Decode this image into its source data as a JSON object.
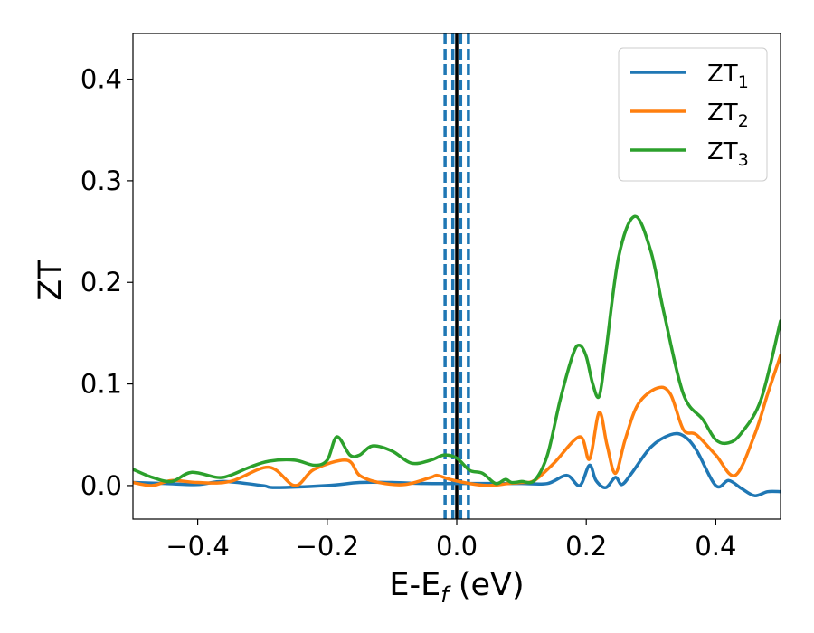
{
  "chart_data": {
    "type": "line",
    "xlabel": "E-E",
    "xlabel_sub": "f",
    "xlabel_unit": " (eV)",
    "ylabel": "ZT",
    "xlim": [
      -0.5,
      0.5
    ],
    "ylim": [
      -0.033,
      0.445
    ],
    "x_ticks": [
      {
        "value": -0.4,
        "label": "−0.4"
      },
      {
        "value": -0.2,
        "label": "−0.2"
      },
      {
        "value": 0.0,
        "label": "0.0"
      },
      {
        "value": 0.2,
        "label": "0.2"
      },
      {
        "value": 0.4,
        "label": "0.4"
      }
    ],
    "y_ticks": [
      {
        "value": 0.0,
        "label": "0.0"
      },
      {
        "value": 0.1,
        "label": "0.1"
      },
      {
        "value": 0.2,
        "label": "0.2"
      },
      {
        "value": 0.3,
        "label": "0.3"
      },
      {
        "value": 0.4,
        "label": "0.4"
      }
    ],
    "grid": false,
    "legend_position": "top-right",
    "vertical_lines": [
      {
        "x": 0.0,
        "style": "solid",
        "color": "#000000"
      },
      {
        "x": -0.018,
        "style": "dashed",
        "color": "#1f77b4"
      },
      {
        "x": -0.006,
        "style": "dashed",
        "color": "#1f77b4"
      },
      {
        "x": 0.006,
        "style": "dashed",
        "color": "#1f77b4"
      },
      {
        "x": 0.018,
        "style": "dashed",
        "color": "#1f77b4"
      }
    ],
    "series": [
      {
        "name": "ZT",
        "sub": "1",
        "color": "#1f77b4",
        "x": [
          -0.5,
          -0.45,
          -0.4,
          -0.36,
          -0.3,
          -0.28,
          -0.2,
          -0.15,
          -0.1,
          -0.05,
          0.0,
          0.05,
          0.1,
          0.14,
          0.17,
          0.19,
          0.205,
          0.215,
          0.23,
          0.245,
          0.255,
          0.27,
          0.3,
          0.33,
          0.35,
          0.37,
          0.4,
          0.42,
          0.44,
          0.46,
          0.48,
          0.5
        ],
        "y": [
          0.003,
          0.002,
          0.001,
          0.004,
          0.0,
          -0.002,
          0.0,
          0.003,
          0.003,
          0.002,
          0.002,
          0.002,
          0.002,
          0.002,
          0.01,
          0.0,
          0.02,
          0.005,
          -0.002,
          0.008,
          0.001,
          0.012,
          0.038,
          0.05,
          0.049,
          0.035,
          0.0,
          0.005,
          -0.003,
          -0.01,
          -0.006,
          -0.006
        ]
      },
      {
        "name": "ZT",
        "sub": "2",
        "color": "#ff7f0e",
        "x": [
          -0.5,
          -0.47,
          -0.44,
          -0.4,
          -0.35,
          -0.29,
          -0.25,
          -0.22,
          -0.17,
          -0.15,
          -0.12,
          -0.08,
          -0.04,
          -0.03,
          -0.01,
          0.02,
          0.05,
          0.08,
          0.1,
          0.12,
          0.15,
          0.19,
          0.205,
          0.22,
          0.232,
          0.245,
          0.26,
          0.28,
          0.31,
          0.33,
          0.35,
          0.37,
          0.4,
          0.43,
          0.46,
          0.48,
          0.5
        ],
        "y": [
          0.003,
          0.0,
          0.005,
          0.003,
          0.004,
          0.018,
          0.0,
          0.016,
          0.025,
          0.01,
          0.003,
          0.001,
          0.008,
          0.01,
          0.006,
          0.002,
          0.0,
          0.002,
          0.003,
          0.005,
          0.022,
          0.048,
          0.026,
          0.072,
          0.04,
          0.012,
          0.045,
          0.08,
          0.096,
          0.09,
          0.055,
          0.05,
          0.03,
          0.01,
          0.05,
          0.09,
          0.128
        ]
      },
      {
        "name": "ZT",
        "sub": "3",
        "color": "#2ca02c",
        "x": [
          -0.5,
          -0.47,
          -0.44,
          -0.41,
          -0.37,
          -0.35,
          -0.32,
          -0.29,
          -0.25,
          -0.22,
          -0.2,
          -0.185,
          -0.165,
          -0.15,
          -0.13,
          -0.1,
          -0.07,
          -0.04,
          -0.02,
          0.0,
          0.02,
          0.04,
          0.06,
          0.075,
          0.085,
          0.1,
          0.12,
          0.14,
          0.16,
          0.18,
          0.19,
          0.2,
          0.21,
          0.22,
          0.23,
          0.25,
          0.275,
          0.3,
          0.32,
          0.35,
          0.38,
          0.4,
          0.42,
          0.44,
          0.47,
          0.5
        ],
        "y": [
          0.016,
          0.008,
          0.004,
          0.013,
          0.008,
          0.01,
          0.018,
          0.024,
          0.025,
          0.02,
          0.025,
          0.048,
          0.03,
          0.03,
          0.039,
          0.034,
          0.022,
          0.025,
          0.03,
          0.027,
          0.015,
          0.012,
          0.002,
          0.006,
          0.003,
          0.004,
          0.005,
          0.03,
          0.085,
          0.13,
          0.138,
          0.127,
          0.1,
          0.088,
          0.13,
          0.225,
          0.265,
          0.23,
          0.17,
          0.09,
          0.065,
          0.045,
          0.042,
          0.052,
          0.085,
          0.162
        ]
      }
    ]
  }
}
